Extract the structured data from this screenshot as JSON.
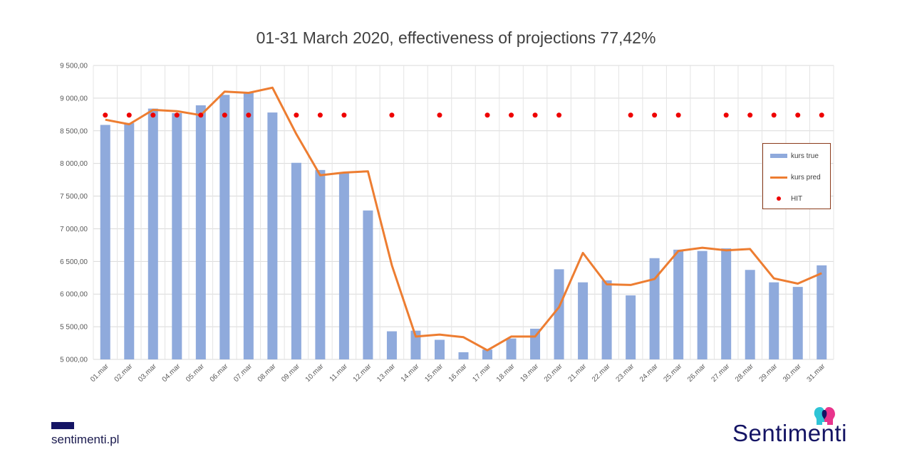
{
  "chart_data": {
    "type": "bar",
    "title": "01-31 March 2020, effectiveness of projections 77,42%",
    "xlabel": "",
    "ylabel": "",
    "ylim": [
      5000,
      9500
    ],
    "y_ticks": [
      "5 000,00",
      "5 500,00",
      "6 000,00",
      "6 500,00",
      "7 000,00",
      "7 500,00",
      "8 000,00",
      "8 500,00",
      "9 000,00",
      "9 500,00"
    ],
    "y_tick_values": [
      5000,
      5500,
      6000,
      6500,
      7000,
      7500,
      8000,
      8500,
      9000,
      9500
    ],
    "categories": [
      "01.mar",
      "02.mar",
      "03.mar",
      "04.mar",
      "05.mar",
      "06.mar",
      "07.mar",
      "08.mar",
      "09.mar",
      "10.mar",
      "11.mar",
      "12.mar",
      "13.mar",
      "14.mar",
      "15.mar",
      "16.mar",
      "17.mar",
      "18.mar",
      "19.mar",
      "20.mar",
      "21.mar",
      "22.mar",
      "23.mar",
      "24.mar",
      "25.mar",
      "26.mar",
      "27.mar",
      "28.mar",
      "29.mar",
      "30.mar",
      "31.mar"
    ],
    "series": [
      {
        "name": "kurs true",
        "type": "bar",
        "color": "#8faadc",
        "values": [
          8590,
          8620,
          8840,
          8770,
          8890,
          9050,
          9090,
          8780,
          8010,
          7900,
          7860,
          7280,
          5430,
          5440,
          5300,
          5110,
          5150,
          5320,
          5470,
          6380,
          6180,
          6210,
          5980,
          6550,
          6680,
          6660,
          6700,
          6370,
          6180,
          6110,
          6440
        ]
      },
      {
        "name": "kurs pred",
        "type": "line",
        "color": "#ed7d31",
        "values": [
          8670,
          8600,
          8820,
          8800,
          8740,
          9100,
          9080,
          9160,
          8450,
          7820,
          7860,
          7880,
          6440,
          5350,
          5380,
          5340,
          5140,
          5350,
          5350,
          5800,
          6630,
          6150,
          6140,
          6230,
          6660,
          6710,
          6670,
          6690,
          6240,
          6160,
          6320
        ]
      },
      {
        "name": "HIT",
        "type": "scatter",
        "color": "#ee0000",
        "marker_value": 8740,
        "hits": [
          true,
          true,
          true,
          true,
          true,
          true,
          true,
          false,
          true,
          true,
          true,
          false,
          true,
          false,
          true,
          false,
          true,
          true,
          true,
          true,
          false,
          false,
          true,
          true,
          true,
          false,
          true,
          true,
          true,
          true,
          true
        ]
      }
    ],
    "grid": true,
    "legend_position": "right"
  },
  "footer": {
    "site": "sentimenti.pl"
  },
  "brand": {
    "name": "Sentimenti",
    "logo_icon": "two-heads-logo-icon"
  }
}
